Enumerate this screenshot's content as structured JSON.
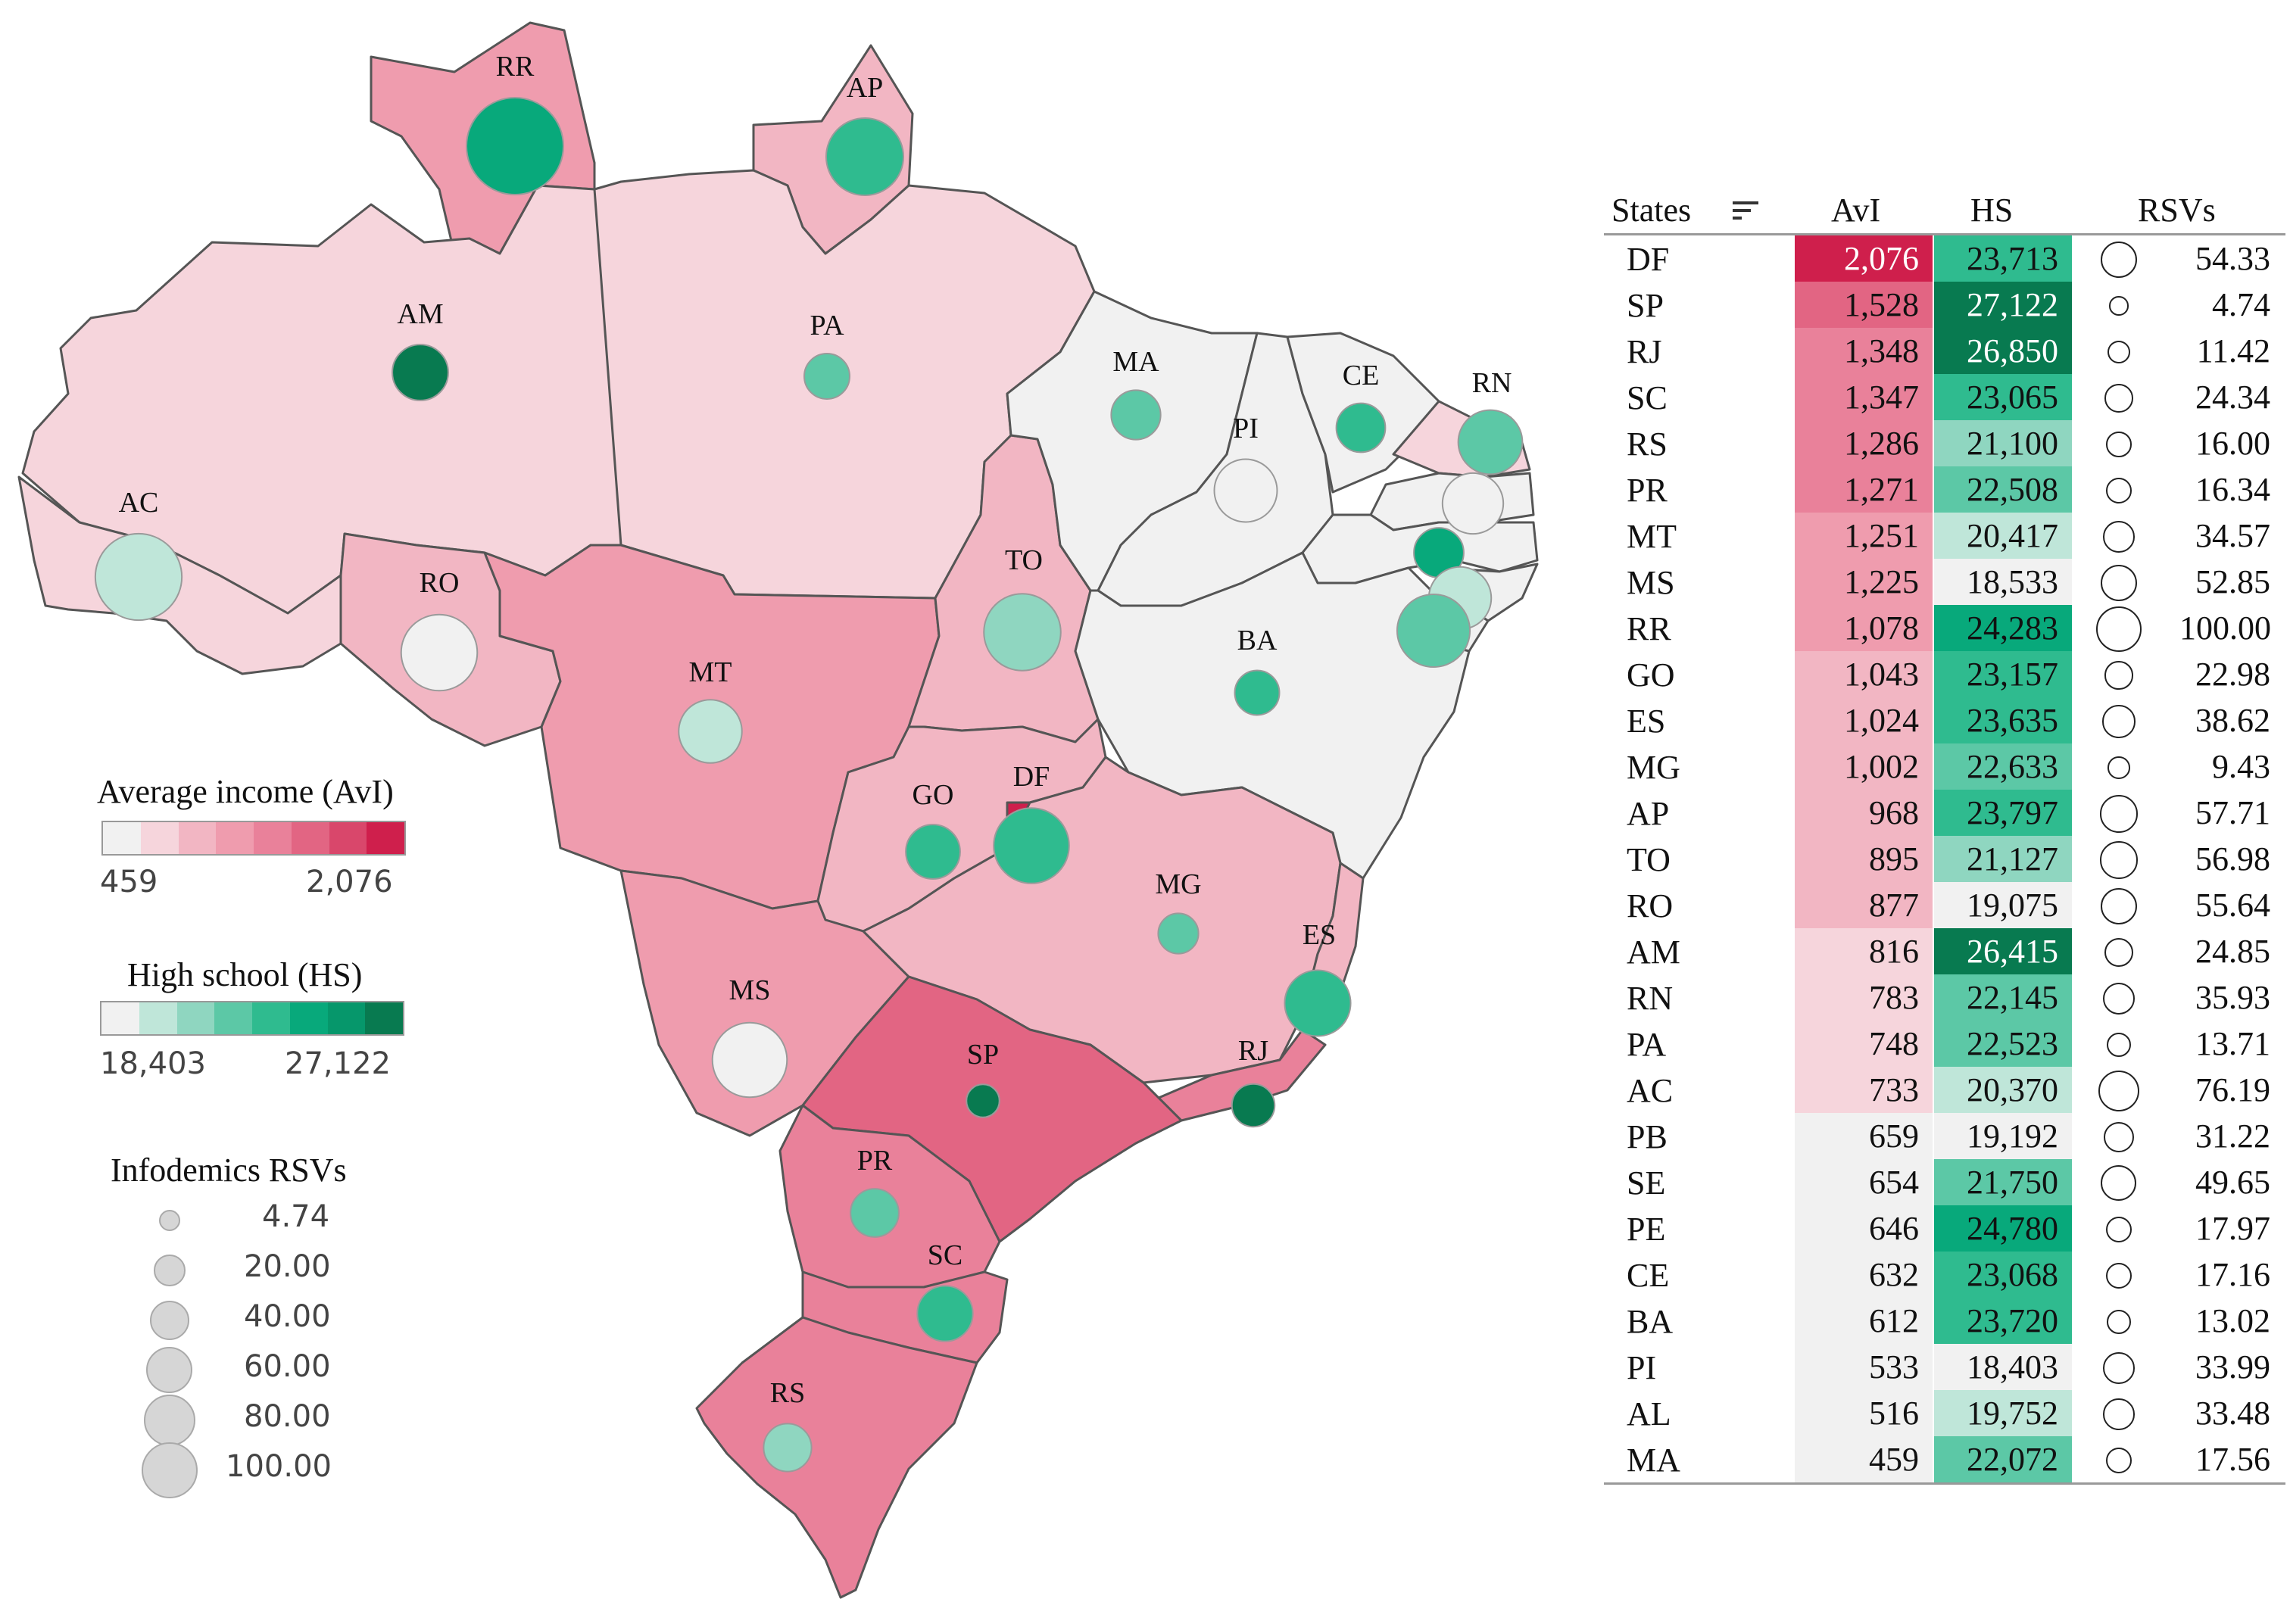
{
  "colors": {
    "avi_ramp": [
      "#f1f1f1",
      "#f6d5dc",
      "#f2b6c3",
      "#ef9cae",
      "#e9819a",
      "#e26583",
      "#d9476b",
      "#cf1f4c"
    ],
    "hs_ramp": [
      "#f1f1f1",
      "#bfe6d9",
      "#8fd6c0",
      "#5cc8a6",
      "#2fbb8f",
      "#08a97b",
      "#06976b",
      "#087a50"
    ],
    "border": "#555555",
    "bubble_legend": "#d6d6d6"
  },
  "legend": {
    "avi": {
      "title": "Average income (AvI)",
      "min": "459",
      "max": "2,076"
    },
    "hs": {
      "title": "High school (HS)",
      "min": "18,403",
      "max": "27,122"
    },
    "rsv": {
      "title": "Infodemics RSVs",
      "values": [
        "4.74",
        "20.00",
        "40.00",
        "60.00",
        "80.00",
        "100.00"
      ]
    }
  },
  "table": {
    "headers": {
      "state": "States",
      "avi": "AvI",
      "hs": "HS",
      "rsv": "RSVs"
    },
    "rows": [
      {
        "state": "DF",
        "avi": "2,076",
        "hs": "23,713",
        "rsv": "54.33"
      },
      {
        "state": "SP",
        "avi": "1,528",
        "hs": "27,122",
        "rsv": "4.74"
      },
      {
        "state": "RJ",
        "avi": "1,348",
        "hs": "26,850",
        "rsv": "11.42"
      },
      {
        "state": "SC",
        "avi": "1,347",
        "hs": "23,065",
        "rsv": "24.34"
      },
      {
        "state": "RS",
        "avi": "1,286",
        "hs": "21,100",
        "rsv": "16.00"
      },
      {
        "state": "PR",
        "avi": "1,271",
        "hs": "22,508",
        "rsv": "16.34"
      },
      {
        "state": "MT",
        "avi": "1,251",
        "hs": "20,417",
        "rsv": "34.57"
      },
      {
        "state": "MS",
        "avi": "1,225",
        "hs": "18,533",
        "rsv": "52.85"
      },
      {
        "state": "RR",
        "avi": "1,078",
        "hs": "24,283",
        "rsv": "100.00"
      },
      {
        "state": "GO",
        "avi": "1,043",
        "hs": "23,157",
        "rsv": "22.98"
      },
      {
        "state": "ES",
        "avi": "1,024",
        "hs": "23,635",
        "rsv": "38.62"
      },
      {
        "state": "MG",
        "avi": "1,002",
        "hs": "22,633",
        "rsv": "9.43"
      },
      {
        "state": "AP",
        "avi": "968",
        "hs": "23,797",
        "rsv": "57.71"
      },
      {
        "state": "TO",
        "avi": "895",
        "hs": "21,127",
        "rsv": "56.98"
      },
      {
        "state": "RO",
        "avi": "877",
        "hs": "19,075",
        "rsv": "55.64"
      },
      {
        "state": "AM",
        "avi": "816",
        "hs": "26,415",
        "rsv": "24.85"
      },
      {
        "state": "RN",
        "avi": "783",
        "hs": "22,145",
        "rsv": "35.93"
      },
      {
        "state": "PA",
        "avi": "748",
        "hs": "22,523",
        "rsv": "13.71"
      },
      {
        "state": "AC",
        "avi": "733",
        "hs": "20,370",
        "rsv": "76.19"
      },
      {
        "state": "PB",
        "avi": "659",
        "hs": "19,192",
        "rsv": "31.22"
      },
      {
        "state": "SE",
        "avi": "654",
        "hs": "21,750",
        "rsv": "49.65"
      },
      {
        "state": "PE",
        "avi": "646",
        "hs": "24,780",
        "rsv": "17.97"
      },
      {
        "state": "CE",
        "avi": "632",
        "hs": "23,068",
        "rsv": "17.16"
      },
      {
        "state": "BA",
        "avi": "612",
        "hs": "23,720",
        "rsv": "13.02"
      },
      {
        "state": "PI",
        "avi": "533",
        "hs": "18,403",
        "rsv": "33.99"
      },
      {
        "state": "AL",
        "avi": "516",
        "hs": "19,752",
        "rsv": "33.48"
      },
      {
        "state": "MA",
        "avi": "459",
        "hs": "22,072",
        "rsv": "17.56"
      }
    ]
  }
}
